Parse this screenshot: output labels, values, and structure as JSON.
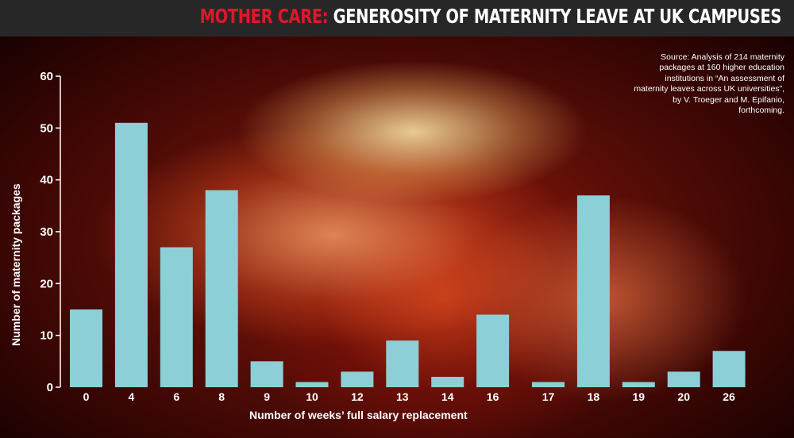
{
  "header": {
    "title_accent": "MOTHER CARE:",
    "title_main": "GENEROSITY OF MATERNITY LEAVE AT UK CAMPUSES"
  },
  "source_note": "Source: Analysis of 214 maternity packages at 160 higher education institutions in “An assessment of maternity leaves across UK universities”, by V. Troeger and M. Epifanio, forthcoming.",
  "colors": {
    "bar": "#8ccfd6",
    "title_accent": "#e0172a",
    "title_bar": "#272727",
    "text": "#ffffff"
  },
  "chart_data": {
    "type": "bar",
    "title": "MOTHER CARE: GENEROSITY OF MATERNITY LEAVE AT UK CAMPUSES",
    "xlabel": "Number of weeks’ full salary replacement",
    "ylabel": "Number of maternity packages",
    "categories": [
      "0",
      "4",
      "6",
      "8",
      "9",
      "10",
      "12",
      "13",
      "14",
      "16",
      "17",
      "18",
      "19",
      "20",
      "26"
    ],
    "values": [
      15,
      51,
      27,
      38,
      5,
      1,
      3,
      9,
      2,
      14,
      1,
      37,
      1,
      3,
      7
    ],
    "ylim": [
      0,
      60
    ],
    "yticks": [
      0,
      10,
      20,
      30,
      40,
      50,
      60
    ],
    "grid": false,
    "legend": "none"
  }
}
